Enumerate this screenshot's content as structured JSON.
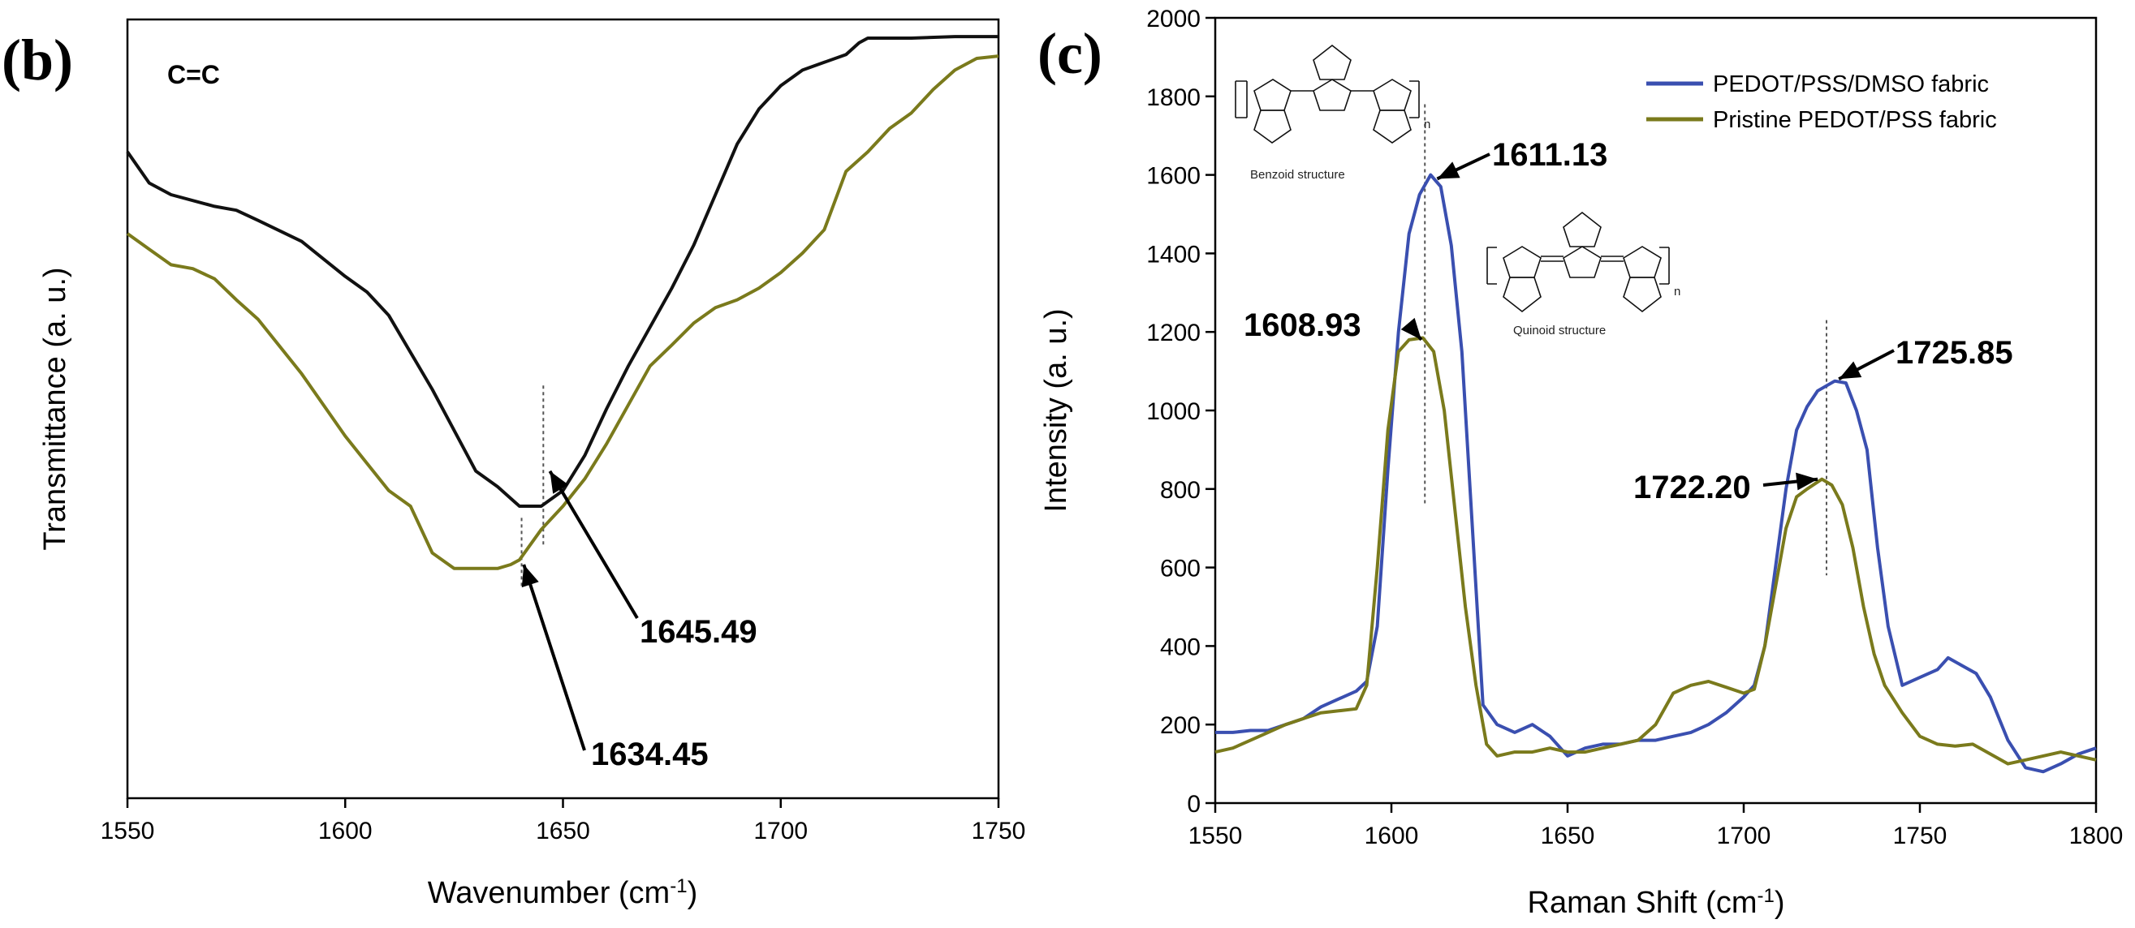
{
  "panels": {
    "b": {
      "letter": "(b)"
    },
    "c": {
      "letter": "(c)"
    }
  },
  "chart_data": [
    {
      "type": "line",
      "panel": "(b)",
      "annotation": "C=C",
      "xlabel": "Wavenumber (cm-1)",
      "xlabel_main": "Wavenumber (cm",
      "xlabel_sup": "-1",
      "xlabel_close": ")",
      "ylabel": "Transmittance (a. u.)",
      "xlim": [
        1550,
        1750
      ],
      "ylim": [
        0,
        100
      ],
      "y_ticks_shown": false,
      "x_ticks": [
        1550,
        1600,
        1650,
        1700,
        1750
      ],
      "colors": {
        "black": "#111111",
        "olive": "#7a7a1c"
      },
      "series": [
        {
          "color_key": "black",
          "x": [
            1550,
            1555,
            1560,
            1570,
            1575,
            1580,
            1590,
            1600,
            1605,
            1610,
            1620,
            1630,
            1635,
            1640,
            1645,
            1650,
            1655,
            1660,
            1665,
            1670,
            1675,
            1680,
            1685,
            1690,
            1695,
            1700,
            1705,
            1710,
            1715,
            1718,
            1720,
            1730,
            1740,
            1750
          ],
          "y": [
            83,
            79,
            77.5,
            76,
            75.5,
            74.2,
            71.5,
            67,
            65,
            62,
            52.5,
            42,
            40,
            37.5,
            37.5,
            39.5,
            44,
            50,
            55.5,
            60.5,
            65.5,
            71,
            77.5,
            84,
            88.5,
            91.5,
            93.5,
            94.5,
            95.5,
            97,
            97.6,
            97.6,
            97.8,
            97.8
          ]
        },
        {
          "color_key": "olive",
          "x": [
            1550,
            1555,
            1560,
            1565,
            1570,
            1575,
            1580,
            1590,
            1600,
            1605,
            1610,
            1615,
            1620,
            1625,
            1630,
            1635,
            1638,
            1640,
            1645,
            1650,
            1655,
            1660,
            1665,
            1670,
            1675,
            1680,
            1685,
            1690,
            1695,
            1700,
            1705,
            1710,
            1715,
            1720,
            1725,
            1730,
            1735,
            1740,
            1745,
            1750
          ],
          "y": [
            72.5,
            70.5,
            68.5,
            68,
            66.7,
            64,
            61.5,
            54.5,
            46.5,
            43,
            39.5,
            37.5,
            31.5,
            29.5,
            29.5,
            29.5,
            30,
            30.6,
            34.5,
            37.5,
            41,
            45.5,
            50.5,
            55.5,
            58.2,
            61,
            63,
            64,
            65.5,
            67.5,
            70,
            73,
            80.5,
            83,
            86,
            88,
            91,
            93.5,
            95,
            95.3
          ]
        }
      ],
      "annotations": [
        {
          "label": "1645.49",
          "x": 1645.49,
          "y": 37.5
        },
        {
          "label": "1634.45",
          "x": 1634.45,
          "y": 29.5
        }
      ]
    },
    {
      "type": "line",
      "panel": "(c)",
      "xlabel": "Raman Shift (cm-1)",
      "xlabel_main": "Raman Shift (cm",
      "xlabel_sup": "-1",
      "xlabel_close": ")",
      "ylabel": "Intensity (a. u.)",
      "xlim": [
        1550,
        1800
      ],
      "ylim": [
        0,
        2000
      ],
      "x_ticks": [
        1550,
        1600,
        1650,
        1700,
        1750,
        1800
      ],
      "y_ticks": [
        0,
        200,
        400,
        600,
        800,
        1000,
        1200,
        1400,
        1600,
        1800,
        2000
      ],
      "legend_position": "top-right",
      "series": [
        {
          "name": "PEDOT/PSS/DMSO fabric",
          "color": "#3a4fb0",
          "x": [
            1550,
            1555,
            1560,
            1565,
            1570,
            1575,
            1580,
            1585,
            1590,
            1593,
            1596,
            1599,
            1602,
            1605,
            1608,
            1611.13,
            1614,
            1617,
            1620,
            1623,
            1626,
            1630,
            1635,
            1640,
            1645,
            1650,
            1655,
            1660,
            1665,
            1670,
            1675,
            1680,
            1685,
            1690,
            1695,
            1700,
            1703,
            1706,
            1709,
            1712,
            1715,
            1718,
            1721,
            1725.85,
            1729,
            1732,
            1735,
            1738,
            1741,
            1745,
            1750,
            1755,
            1758,
            1762,
            1766,
            1770,
            1775,
            1780,
            1785,
            1790,
            1795,
            1800
          ],
          "y": [
            180,
            180,
            185,
            185,
            200,
            215,
            245,
            265,
            285,
            310,
            450,
            850,
            1200,
            1450,
            1550,
            1600,
            1570,
            1420,
            1150,
            700,
            250,
            200,
            180,
            200,
            170,
            120,
            140,
            150,
            150,
            160,
            160,
            170,
            180,
            200,
            230,
            270,
            300,
            400,
            600,
            800,
            950,
            1010,
            1050,
            1075,
            1070,
            1000,
            900,
            650,
            450,
            300,
            320,
            340,
            370,
            350,
            330,
            270,
            160,
            90,
            80,
            100,
            125,
            140
          ]
        },
        {
          "name": "Pristine PEDOT/PSS fabric",
          "color": "#7a7a1c",
          "x": [
            1550,
            1555,
            1560,
            1565,
            1570,
            1575,
            1580,
            1585,
            1590,
            1593,
            1596,
            1599,
            1602,
            1605,
            1608.93,
            1612,
            1615,
            1618,
            1621,
            1624,
            1627,
            1630,
            1635,
            1640,
            1645,
            1650,
            1655,
            1660,
            1665,
            1670,
            1675,
            1680,
            1685,
            1690,
            1695,
            1700,
            1703,
            1706,
            1709,
            1712,
            1715,
            1718,
            1722.2,
            1725,
            1728,
            1731,
            1734,
            1737,
            1740,
            1745,
            1750,
            1755,
            1760,
            1765,
            1770,
            1775,
            1780,
            1785,
            1790,
            1795,
            1800
          ],
          "y": [
            130,
            140,
            160,
            180,
            200,
            215,
            230,
            235,
            240,
            300,
            600,
            950,
            1150,
            1180,
            1185,
            1150,
            1000,
            750,
            500,
            300,
            150,
            120,
            130,
            130,
            140,
            130,
            130,
            140,
            150,
            160,
            200,
            280,
            300,
            310,
            295,
            280,
            290,
            400,
            550,
            700,
            780,
            800,
            825,
            810,
            760,
            650,
            500,
            380,
            300,
            230,
            170,
            150,
            145,
            150,
            125,
            100,
            110,
            120,
            130,
            120,
            110
          ]
        }
      ],
      "annotations": [
        {
          "label": "1611.13",
          "x": 1611.13,
          "y": 1600
        },
        {
          "label": "1608.93",
          "x": 1608.93,
          "y": 1185
        },
        {
          "label": "1725.85",
          "x": 1725.85,
          "y": 1075
        },
        {
          "label": "1722.20",
          "x": 1722.2,
          "y": 825
        }
      ],
      "structure_labels": {
        "benzoid": "Benzoid structure",
        "quinoid": "Quinoid structure",
        "subscript": "n"
      }
    }
  ]
}
